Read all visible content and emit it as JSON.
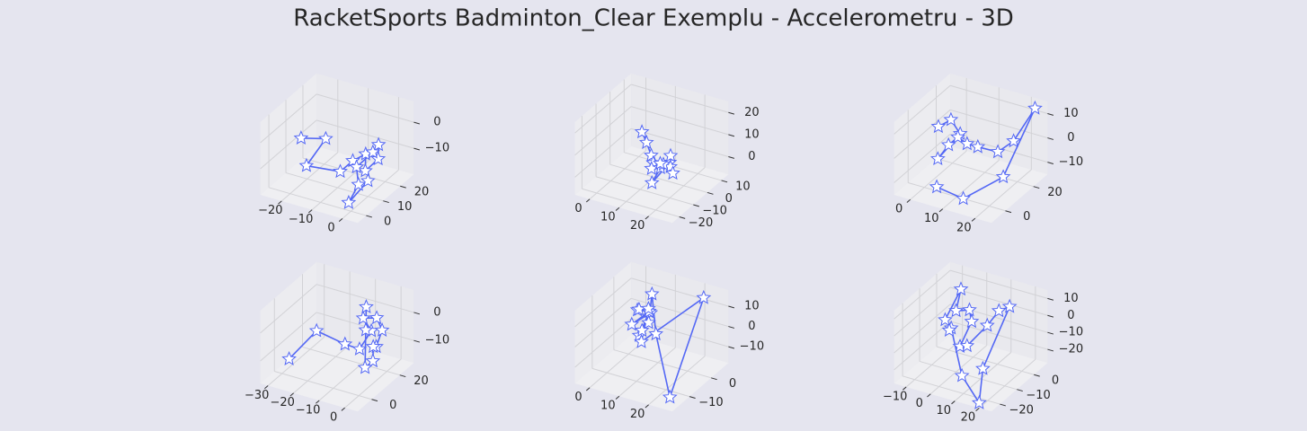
{
  "title": "RacketSports Badminton_Clear Exemplu - Accelerometru - 3D",
  "chart_data": [
    {
      "type": "line3d",
      "color": "#5468f5",
      "marker": "star",
      "xlim": [
        -27,
        5
      ],
      "ylim": [
        -5,
        28
      ],
      "zlim": [
        -20,
        8
      ],
      "xticks": [
        {
          "value": -20,
          "label": "−20"
        },
        {
          "value": -10,
          "label": "−10"
        },
        0
      ],
      "yticks": [
        0,
        10,
        20
      ],
      "zticks": [
        {
          "value": -10,
          "label": "−10"
        },
        0
      ],
      "x": [
        -22,
        -15,
        -18,
        -8,
        -5,
        -3,
        -2,
        0,
        -1,
        -4,
        -6,
        -2,
        -3,
        0
      ],
      "y": [
        10,
        12,
        6,
        8,
        10,
        14,
        12,
        16,
        18,
        20,
        14,
        8,
        4,
        10
      ],
      "z": [
        -5,
        -4,
        -12,
        -12,
        -8,
        -7,
        -12,
        -9,
        -5,
        -10,
        -13,
        -15,
        -20,
        -14
      ]
    },
    {
      "type": "line3d",
      "color": "#5468f5",
      "marker": "star",
      "xlim": [
        -5,
        28
      ],
      "ylim": [
        -25,
        15
      ],
      "zlim": [
        -8,
        25
      ],
      "xticks": [
        0,
        10,
        20
      ],
      "yticks": [
        {
          "value": -20,
          "label": "−20"
        },
        {
          "value": -10,
          "label": "−10"
        },
        0,
        10
      ],
      "zticks": [
        0,
        10,
        20
      ],
      "x": [
        2,
        5,
        8,
        10,
        12,
        10,
        14,
        13,
        20,
        24,
        26,
        22,
        15,
        12
      ],
      "y": [
        8,
        5,
        2,
        0,
        -5,
        -2,
        -4,
        -8,
        -10,
        -18,
        -22,
        -12,
        -4,
        0
      ],
      "z": [
        5,
        3,
        0,
        -2,
        2,
        -3,
        0,
        -5,
        8,
        12,
        20,
        5,
        2,
        -1
      ]
    },
    {
      "type": "line3d",
      "color": "#5468f5",
      "marker": "star",
      "xlim": [
        -5,
        25
      ],
      "ylim": [
        -10,
        30
      ],
      "zlim": [
        -15,
        15
      ],
      "xticks": [
        0,
        10,
        20
      ],
      "yticks": [
        0,
        20
      ],
      "zticks": [
        {
          "value": -10,
          "label": "−10"
        },
        0,
        10
      ],
      "x": [
        0,
        3,
        5,
        2,
        4,
        6,
        8,
        10,
        14,
        18,
        22,
        20,
        12,
        6
      ],
      "y": [
        10,
        12,
        14,
        5,
        8,
        10,
        12,
        15,
        20,
        22,
        28,
        10,
        0,
        -5
      ],
      "z": [
        5,
        8,
        2,
        -5,
        0,
        3,
        0,
        -2,
        -5,
        0,
        12,
        -8,
        -15,
        -10
      ]
    },
    {
      "type": "line3d",
      "color": "#5468f5",
      "marker": "star",
      "xlim": [
        -33,
        5
      ],
      "ylim": [
        -10,
        30
      ],
      "zlim": [
        -18,
        8
      ],
      "xticks": [
        {
          "value": -30,
          "label": "−30"
        },
        {
          "value": -20,
          "label": "−20"
        },
        {
          "value": -10,
          "label": "−10"
        },
        0
      ],
      "yticks": [
        0,
        20
      ],
      "zticks": [
        {
          "value": -10,
          "label": "−10"
        },
        0
      ],
      "x": [
        -30,
        -22,
        -12,
        -8,
        -5,
        -6,
        -4,
        -3,
        -2,
        -1,
        0,
        -2,
        -5,
        -7
      ],
      "y": [
        5,
        10,
        12,
        15,
        18,
        14,
        20,
        22,
        16,
        12,
        10,
        8,
        14,
        18
      ],
      "z": [
        -15,
        -5,
        -8,
        -10,
        -4,
        2,
        0,
        -5,
        -8,
        -6,
        -10,
        -12,
        -2,
        4
      ]
    },
    {
      "type": "line3d",
      "color": "#5468f5",
      "marker": "star",
      "xlim": [
        -5,
        28
      ],
      "ylim": [
        -18,
        8
      ],
      "zlim": [
        -18,
        18
      ],
      "xticks": [
        0,
        10,
        20
      ],
      "yticks": [
        {
          "value": -10,
          "label": "−10"
        },
        0
      ],
      "zticks": [
        {
          "value": -10,
          "label": "−10"
        },
        0,
        10
      ],
      "x": [
        3,
        5,
        6,
        4,
        7,
        8,
        6,
        9,
        5,
        10,
        25,
        24,
        8,
        6
      ],
      "y": [
        0,
        -2,
        2,
        -4,
        0,
        -6,
        -2,
        -3,
        4,
        -1,
        -15,
        2,
        -5,
        1
      ],
      "z": [
        5,
        8,
        3,
        2,
        6,
        0,
        -2,
        4,
        10,
        -3,
        -15,
        18,
        -4,
        6
      ]
    },
    {
      "type": "line3d",
      "color": "#5468f5",
      "marker": "star",
      "xlim": [
        -15,
        25
      ],
      "ylim": [
        -25,
        8
      ],
      "zlim": [
        -28,
        15
      ],
      "xticks": [
        {
          "value": -10,
          "label": "−10"
        },
        0,
        10,
        20
      ],
      "yticks": [
        {
          "value": -20,
          "label": "−20"
        },
        {
          "value": -10,
          "label": "−10"
        },
        0
      ],
      "zticks": [
        {
          "value": -20,
          "label": "−20"
        },
        {
          "value": -10,
          "label": "−10"
        },
        0,
        10
      ],
      "x": [
        -8,
        -5,
        0,
        2,
        5,
        3,
        8,
        10,
        12,
        15,
        18,
        20,
        8,
        -2,
        0
      ],
      "y": [
        -5,
        0,
        -10,
        -5,
        -8,
        -12,
        -15,
        -6,
        -2,
        0,
        -20,
        -25,
        -18,
        -10,
        -14
      ],
      "z": [
        -5,
        10,
        8,
        5,
        2,
        -10,
        -5,
        0,
        6,
        8,
        -10,
        -25,
        -20,
        -3,
        0
      ]
    }
  ]
}
